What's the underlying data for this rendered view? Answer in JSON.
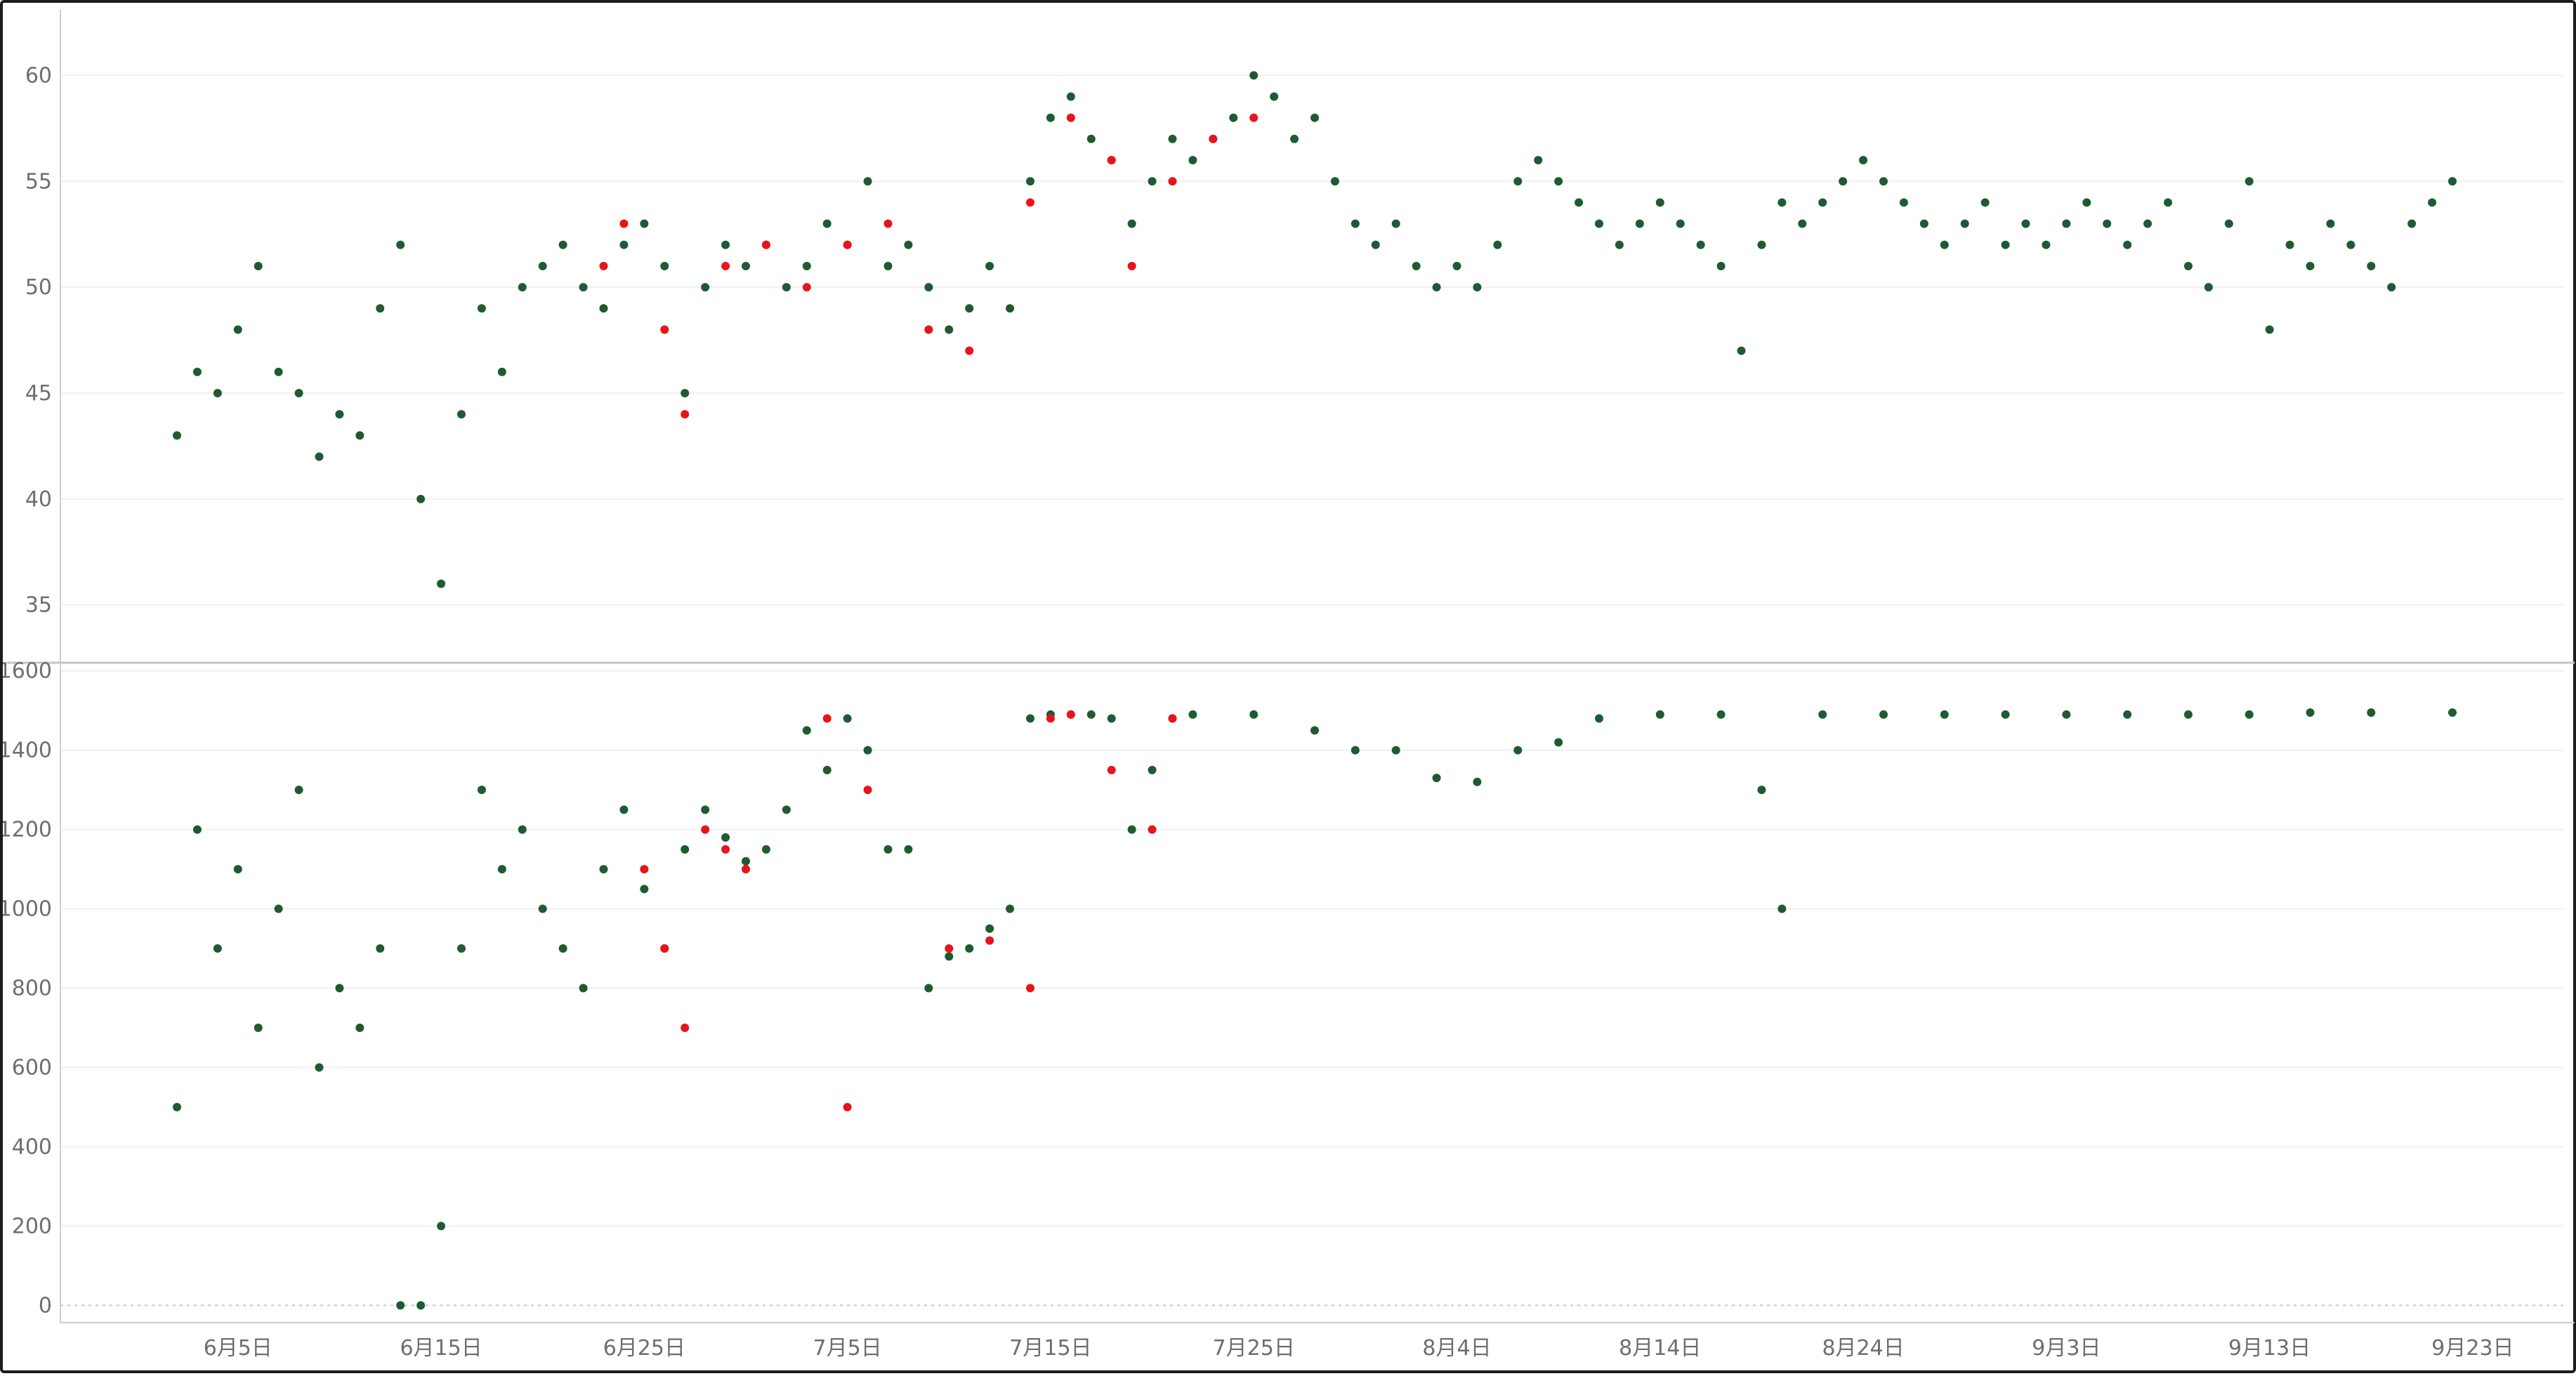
{
  "colors": {
    "series_normal": "#1f5a32",
    "series_flagged": "#e8141c",
    "grid": "#f0f0f0",
    "tick_text": "#6e6e6e",
    "frame": "#1c1c1c"
  },
  "chart_data": [
    {
      "type": "scatter",
      "pane": "top",
      "title": "",
      "xlabel": "",
      "ylabel": "",
      "ylim": [
        33,
        62.5
      ],
      "yticks": [
        35,
        40,
        45,
        50,
        55,
        60
      ],
      "grid": true,
      "x_range": [
        "2025-06-02",
        "2025-09-22"
      ],
      "xticks": [
        {
          "date": "2025-06-05",
          "label": "6月5日"
        },
        {
          "date": "2025-06-15",
          "label": "6月15日"
        },
        {
          "date": "2025-06-25",
          "label": "6月25日"
        },
        {
          "date": "2025-07-05",
          "label": "7月5日"
        },
        {
          "date": "2025-07-15",
          "label": "7月15日"
        },
        {
          "date": "2025-07-25",
          "label": "7月25日"
        },
        {
          "date": "2025-08-04",
          "label": "8月4日"
        },
        {
          "date": "2025-08-14",
          "label": "8月14日"
        },
        {
          "date": "2025-08-24",
          "label": "8月24日"
        },
        {
          "date": "2025-09-03",
          "label": "9月3日"
        },
        {
          "date": "2025-09-13",
          "label": "9月13日"
        },
        {
          "date": "2025-09-23",
          "label": "9月23日"
        }
      ],
      "series": [
        {
          "color": "#1f5a32",
          "points": [
            [
              "2025-06-02",
              43
            ],
            [
              "2025-06-03",
              46
            ],
            [
              "2025-06-04",
              45
            ],
            [
              "2025-06-05",
              48
            ],
            [
              "2025-06-06",
              51
            ],
            [
              "2025-06-07",
              46
            ],
            [
              "2025-06-08",
              45
            ],
            [
              "2025-06-09",
              42
            ],
            [
              "2025-06-10",
              44
            ],
            [
              "2025-06-11",
              43
            ],
            [
              "2025-06-12",
              49
            ],
            [
              "2025-06-13",
              52
            ],
            [
              "2025-06-14",
              40
            ],
            [
              "2025-06-15",
              36
            ],
            [
              "2025-06-16",
              44
            ],
            [
              "2025-06-17",
              49
            ],
            [
              "2025-06-18",
              46
            ],
            [
              "2025-06-19",
              50
            ],
            [
              "2025-06-20",
              51
            ],
            [
              "2025-06-21",
              52
            ],
            [
              "2025-06-22",
              50
            ],
            [
              "2025-06-23",
              49
            ],
            [
              "2025-06-24",
              52
            ],
            [
              "2025-06-25",
              53
            ],
            [
              "2025-06-26",
              51
            ],
            [
              "2025-06-27",
              45
            ],
            [
              "2025-06-28",
              50
            ],
            [
              "2025-06-29",
              52
            ],
            [
              "2025-06-30",
              51
            ],
            [
              "2025-07-01",
              52
            ],
            [
              "2025-07-02",
              50
            ],
            [
              "2025-07-03",
              51
            ],
            [
              "2025-07-04",
              53
            ],
            [
              "2025-07-05",
              52
            ],
            [
              "2025-07-06",
              55
            ],
            [
              "2025-07-07",
              51
            ],
            [
              "2025-07-08",
              52
            ],
            [
              "2025-07-09",
              50
            ],
            [
              "2025-07-10",
              48
            ],
            [
              "2025-07-11",
              49
            ],
            [
              "2025-07-12",
              51
            ],
            [
              "2025-07-13",
              49
            ],
            [
              "2025-07-14",
              55
            ],
            [
              "2025-07-15",
              58
            ],
            [
              "2025-07-16",
              59
            ],
            [
              "2025-07-17",
              57
            ],
            [
              "2025-07-18",
              56
            ],
            [
              "2025-07-19",
              53
            ],
            [
              "2025-07-20",
              55
            ],
            [
              "2025-07-21",
              57
            ],
            [
              "2025-07-22",
              56
            ],
            [
              "2025-07-23",
              57
            ],
            [
              "2025-07-24",
              58
            ],
            [
              "2025-07-25",
              60
            ],
            [
              "2025-07-26",
              59
            ],
            [
              "2025-07-27",
              57
            ],
            [
              "2025-07-28",
              58
            ],
            [
              "2025-07-29",
              55
            ],
            [
              "2025-07-30",
              53
            ],
            [
              "2025-07-31",
              52
            ],
            [
              "2025-08-01",
              53
            ],
            [
              "2025-08-02",
              51
            ],
            [
              "2025-08-03",
              50
            ],
            [
              "2025-08-04",
              51
            ],
            [
              "2025-08-05",
              50
            ],
            [
              "2025-08-06",
              52
            ],
            [
              "2025-08-07",
              55
            ],
            [
              "2025-08-08",
              56
            ],
            [
              "2025-08-09",
              55
            ],
            [
              "2025-08-10",
              54
            ],
            [
              "2025-08-11",
              53
            ],
            [
              "2025-08-12",
              52
            ],
            [
              "2025-08-13",
              53
            ],
            [
              "2025-08-14",
              54
            ],
            [
              "2025-08-15",
              53
            ],
            [
              "2025-08-16",
              52
            ],
            [
              "2025-08-17",
              51
            ],
            [
              "2025-08-18",
              47
            ],
            [
              "2025-08-19",
              52
            ],
            [
              "2025-08-20",
              54
            ],
            [
              "2025-08-21",
              53
            ],
            [
              "2025-08-22",
              54
            ],
            [
              "2025-08-23",
              55
            ],
            [
              "2025-08-24",
              56
            ],
            [
              "2025-08-25",
              55
            ],
            [
              "2025-08-26",
              54
            ],
            [
              "2025-08-27",
              53
            ],
            [
              "2025-08-28",
              52
            ],
            [
              "2025-08-29",
              53
            ],
            [
              "2025-08-30",
              54
            ],
            [
              "2025-08-31",
              52
            ],
            [
              "2025-09-01",
              53
            ],
            [
              "2025-09-02",
              52
            ],
            [
              "2025-09-03",
              53
            ],
            [
              "2025-09-04",
              54
            ],
            [
              "2025-09-05",
              53
            ],
            [
              "2025-09-06",
              52
            ],
            [
              "2025-09-07",
              53
            ],
            [
              "2025-09-08",
              54
            ],
            [
              "2025-09-09",
              51
            ],
            [
              "2025-09-10",
              50
            ],
            [
              "2025-09-11",
              53
            ],
            [
              "2025-09-12",
              55
            ],
            [
              "2025-09-13",
              48
            ],
            [
              "2025-09-14",
              52
            ],
            [
              "2025-09-15",
              51
            ],
            [
              "2025-09-16",
              53
            ],
            [
              "2025-09-17",
              52
            ],
            [
              "2025-09-18",
              51
            ],
            [
              "2025-09-19",
              50
            ],
            [
              "2025-09-20",
              53
            ],
            [
              "2025-09-21",
              54
            ],
            [
              "2025-09-22",
              55
            ]
          ]
        },
        {
          "color": "#e8141c",
          "points": [
            [
              "2025-06-23",
              51
            ],
            [
              "2025-06-24",
              53
            ],
            [
              "2025-06-26",
              48
            ],
            [
              "2025-06-27",
              44
            ],
            [
              "2025-06-29",
              51
            ],
            [
              "2025-07-01",
              52
            ],
            [
              "2025-07-03",
              50
            ],
            [
              "2025-07-05",
              52
            ],
            [
              "2025-07-07",
              53
            ],
            [
              "2025-07-09",
              48
            ],
            [
              "2025-07-11",
              47
            ],
            [
              "2025-07-14",
              54
            ],
            [
              "2025-07-16",
              58
            ],
            [
              "2025-07-18",
              56
            ],
            [
              "2025-07-19",
              51
            ],
            [
              "2025-07-21",
              55
            ],
            [
              "2025-07-23",
              57
            ],
            [
              "2025-07-25",
              58
            ]
          ]
        }
      ]
    },
    {
      "type": "scatter",
      "pane": "bottom",
      "title": "",
      "xlabel": "",
      "ylabel": "",
      "ylim": [
        -40,
        1610
      ],
      "yticks": [
        0,
        200,
        400,
        600,
        800,
        1000,
        1200,
        1400,
        1600
      ],
      "grid": true,
      "x_range": [
        "2025-06-02",
        "2025-09-22"
      ],
      "series": [
        {
          "color": "#1f5a32",
          "points": [
            [
              "2025-06-02",
              500
            ],
            [
              "2025-06-03",
              1200
            ],
            [
              "2025-06-04",
              900
            ],
            [
              "2025-06-05",
              1100
            ],
            [
              "2025-06-06",
              700
            ],
            [
              "2025-06-07",
              1000
            ],
            [
              "2025-06-08",
              1300
            ],
            [
              "2025-06-09",
              600
            ],
            [
              "2025-06-10",
              800
            ],
            [
              "2025-06-11",
              700
            ],
            [
              "2025-06-12",
              900
            ],
            [
              "2025-06-13",
              0
            ],
            [
              "2025-06-14",
              0
            ],
            [
              "2025-06-15",
              200
            ],
            [
              "2025-06-16",
              900
            ],
            [
              "2025-06-17",
              1300
            ],
            [
              "2025-06-18",
              1100
            ],
            [
              "2025-06-19",
              1200
            ],
            [
              "2025-06-20",
              1000
            ],
            [
              "2025-06-21",
              900
            ],
            [
              "2025-06-22",
              800
            ],
            [
              "2025-06-23",
              1100
            ],
            [
              "2025-06-24",
              1250
            ],
            [
              "2025-06-25",
              1050
            ],
            [
              "2025-06-26",
              900
            ],
            [
              "2025-06-27",
              1150
            ],
            [
              "2025-06-28",
              1250
            ],
            [
              "2025-06-29",
              1180
            ],
            [
              "2025-06-30",
              1120
            ],
            [
              "2025-07-01",
              1150
            ],
            [
              "2025-07-02",
              1250
            ],
            [
              "2025-07-03",
              1450
            ],
            [
              "2025-07-04",
              1350
            ],
            [
              "2025-07-05",
              1480
            ],
            [
              "2025-07-06",
              1400
            ],
            [
              "2025-07-07",
              1150
            ],
            [
              "2025-07-08",
              1150
            ],
            [
              "2025-07-09",
              800
            ],
            [
              "2025-07-10",
              880
            ],
            [
              "2025-07-11",
              900
            ],
            [
              "2025-07-12",
              950
            ],
            [
              "2025-07-13",
              1000
            ],
            [
              "2025-07-14",
              1480
            ],
            [
              "2025-07-15",
              1490
            ],
            [
              "2025-07-16",
              1490
            ],
            [
              "2025-07-17",
              1490
            ],
            [
              "2025-07-18",
              1480
            ],
            [
              "2025-07-19",
              1200
            ],
            [
              "2025-07-20",
              1350
            ],
            [
              "2025-07-21",
              1480
            ],
            [
              "2025-07-22",
              1490
            ],
            [
              "2025-07-25",
              1490
            ],
            [
              "2025-07-28",
              1450
            ],
            [
              "2025-07-30",
              1400
            ],
            [
              "2025-08-01",
              1400
            ],
            [
              "2025-08-03",
              1330
            ],
            [
              "2025-08-05",
              1320
            ],
            [
              "2025-08-07",
              1400
            ],
            [
              "2025-08-09",
              1420
            ],
            [
              "2025-08-11",
              1480
            ],
            [
              "2025-08-14",
              1490
            ],
            [
              "2025-08-17",
              1490
            ],
            [
              "2025-08-19",
              1300
            ],
            [
              "2025-08-20",
              1000
            ],
            [
              "2025-08-22",
              1490
            ],
            [
              "2025-08-25",
              1490
            ],
            [
              "2025-08-28",
              1490
            ],
            [
              "2025-08-31",
              1490
            ],
            [
              "2025-09-03",
              1490
            ],
            [
              "2025-09-06",
              1490
            ],
            [
              "2025-09-09",
              1490
            ],
            [
              "2025-09-12",
              1490
            ],
            [
              "2025-09-15",
              1495
            ],
            [
              "2025-09-18",
              1495
            ],
            [
              "2025-09-22",
              1495
            ]
          ]
        },
        {
          "color": "#e8141c",
          "points": [
            [
              "2025-06-25",
              1100
            ],
            [
              "2025-06-26",
              900
            ],
            [
              "2025-06-27",
              700
            ],
            [
              "2025-06-28",
              1200
            ],
            [
              "2025-06-29",
              1150
            ],
            [
              "2025-06-30",
              1100
            ],
            [
              "2025-07-04",
              1480
            ],
            [
              "2025-07-05",
              500
            ],
            [
              "2025-07-06",
              1300
            ],
            [
              "2025-07-10",
              900
            ],
            [
              "2025-07-12",
              920
            ],
            [
              "2025-07-14",
              800
            ],
            [
              "2025-07-15",
              1480
            ],
            [
              "2025-07-16",
              1490
            ],
            [
              "2025-07-18",
              1350
            ],
            [
              "2025-07-20",
              1200
            ],
            [
              "2025-07-21",
              1480
            ]
          ]
        }
      ]
    }
  ]
}
